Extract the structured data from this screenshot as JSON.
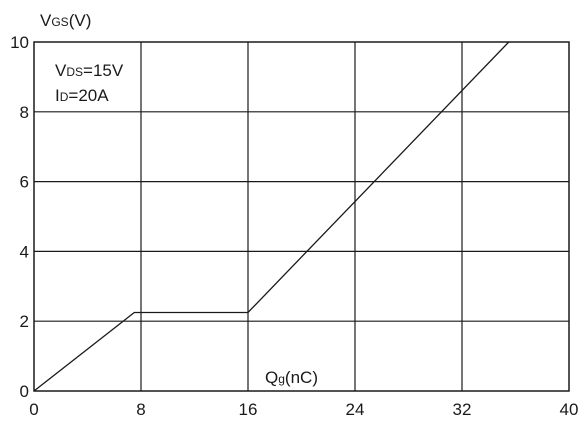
{
  "chart_data": {
    "type": "line",
    "title": "",
    "ylabel": {
      "main": "V",
      "sub": "GS",
      "tail": "(V)"
    },
    "xlabel": {
      "main": "Q",
      "sub": "g",
      "tail": "(nC)"
    },
    "xlim": [
      0,
      40
    ],
    "ylim": [
      0,
      10
    ],
    "x_ticks": [
      0,
      8,
      16,
      24,
      32,
      40
    ],
    "y_ticks": [
      0,
      2,
      4,
      6,
      8,
      10
    ],
    "x_tick_labels": [
      "0",
      "8",
      "16",
      "24",
      "32",
      "40"
    ],
    "y_tick_labels": [
      "0",
      "2",
      "4",
      "6",
      "8",
      "10"
    ],
    "grid": true,
    "annotations": [
      {
        "main": "V",
        "sub": "DS",
        "tail": "=15V"
      },
      {
        "main": "I",
        "sub": "D",
        "tail": "=20A"
      }
    ],
    "series": [
      {
        "x": [
          0,
          7.5,
          16,
          35.5
        ],
        "y": [
          0,
          2.25,
          2.25,
          10
        ]
      }
    ]
  }
}
